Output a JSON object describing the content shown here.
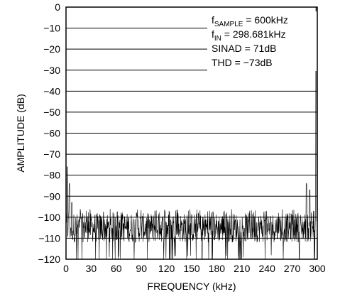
{
  "chart_data": {
    "type": "line",
    "title": "",
    "xlabel": "FREQUENCY (kHz)",
    "ylabel": "AMPLITUDE (dB)",
    "xlim": [
      0,
      300
    ],
    "ylim": [
      -120,
      0
    ],
    "xticks": [
      0,
      30,
      60,
      90,
      120,
      150,
      180,
      210,
      240,
      270,
      300
    ],
    "yticks": [
      0,
      -10,
      -20,
      -30,
      -40,
      -50,
      -60,
      -70,
      -80,
      -90,
      -100,
      -110,
      -120
    ],
    "grid": "horizontal",
    "noise_floor_db": [
      -112,
      -98
    ],
    "series": [
      {
        "signal_peak": {
          "x": 298.681,
          "y": 0
        },
        "spurs": [
          {
            "x": 1.5,
            "y": -76
          },
          {
            "x": 4,
            "y": -84
          },
          {
            "x": 7,
            "y": -93
          },
          {
            "x": 287,
            "y": -84
          },
          {
            "x": 291,
            "y": -87
          }
        ]
      }
    ],
    "annotations": [
      {
        "main": "f",
        "sub": "SAMPLE",
        "rest": " = 600kHz"
      },
      {
        "main": "f",
        "sub": "IN",
        "rest": " = 298.681kHz"
      },
      {
        "main": "SINAD = 71dB",
        "sub": "",
        "rest": ""
      },
      {
        "main": "THD = −73dB",
        "sub": "",
        "rest": ""
      }
    ]
  }
}
